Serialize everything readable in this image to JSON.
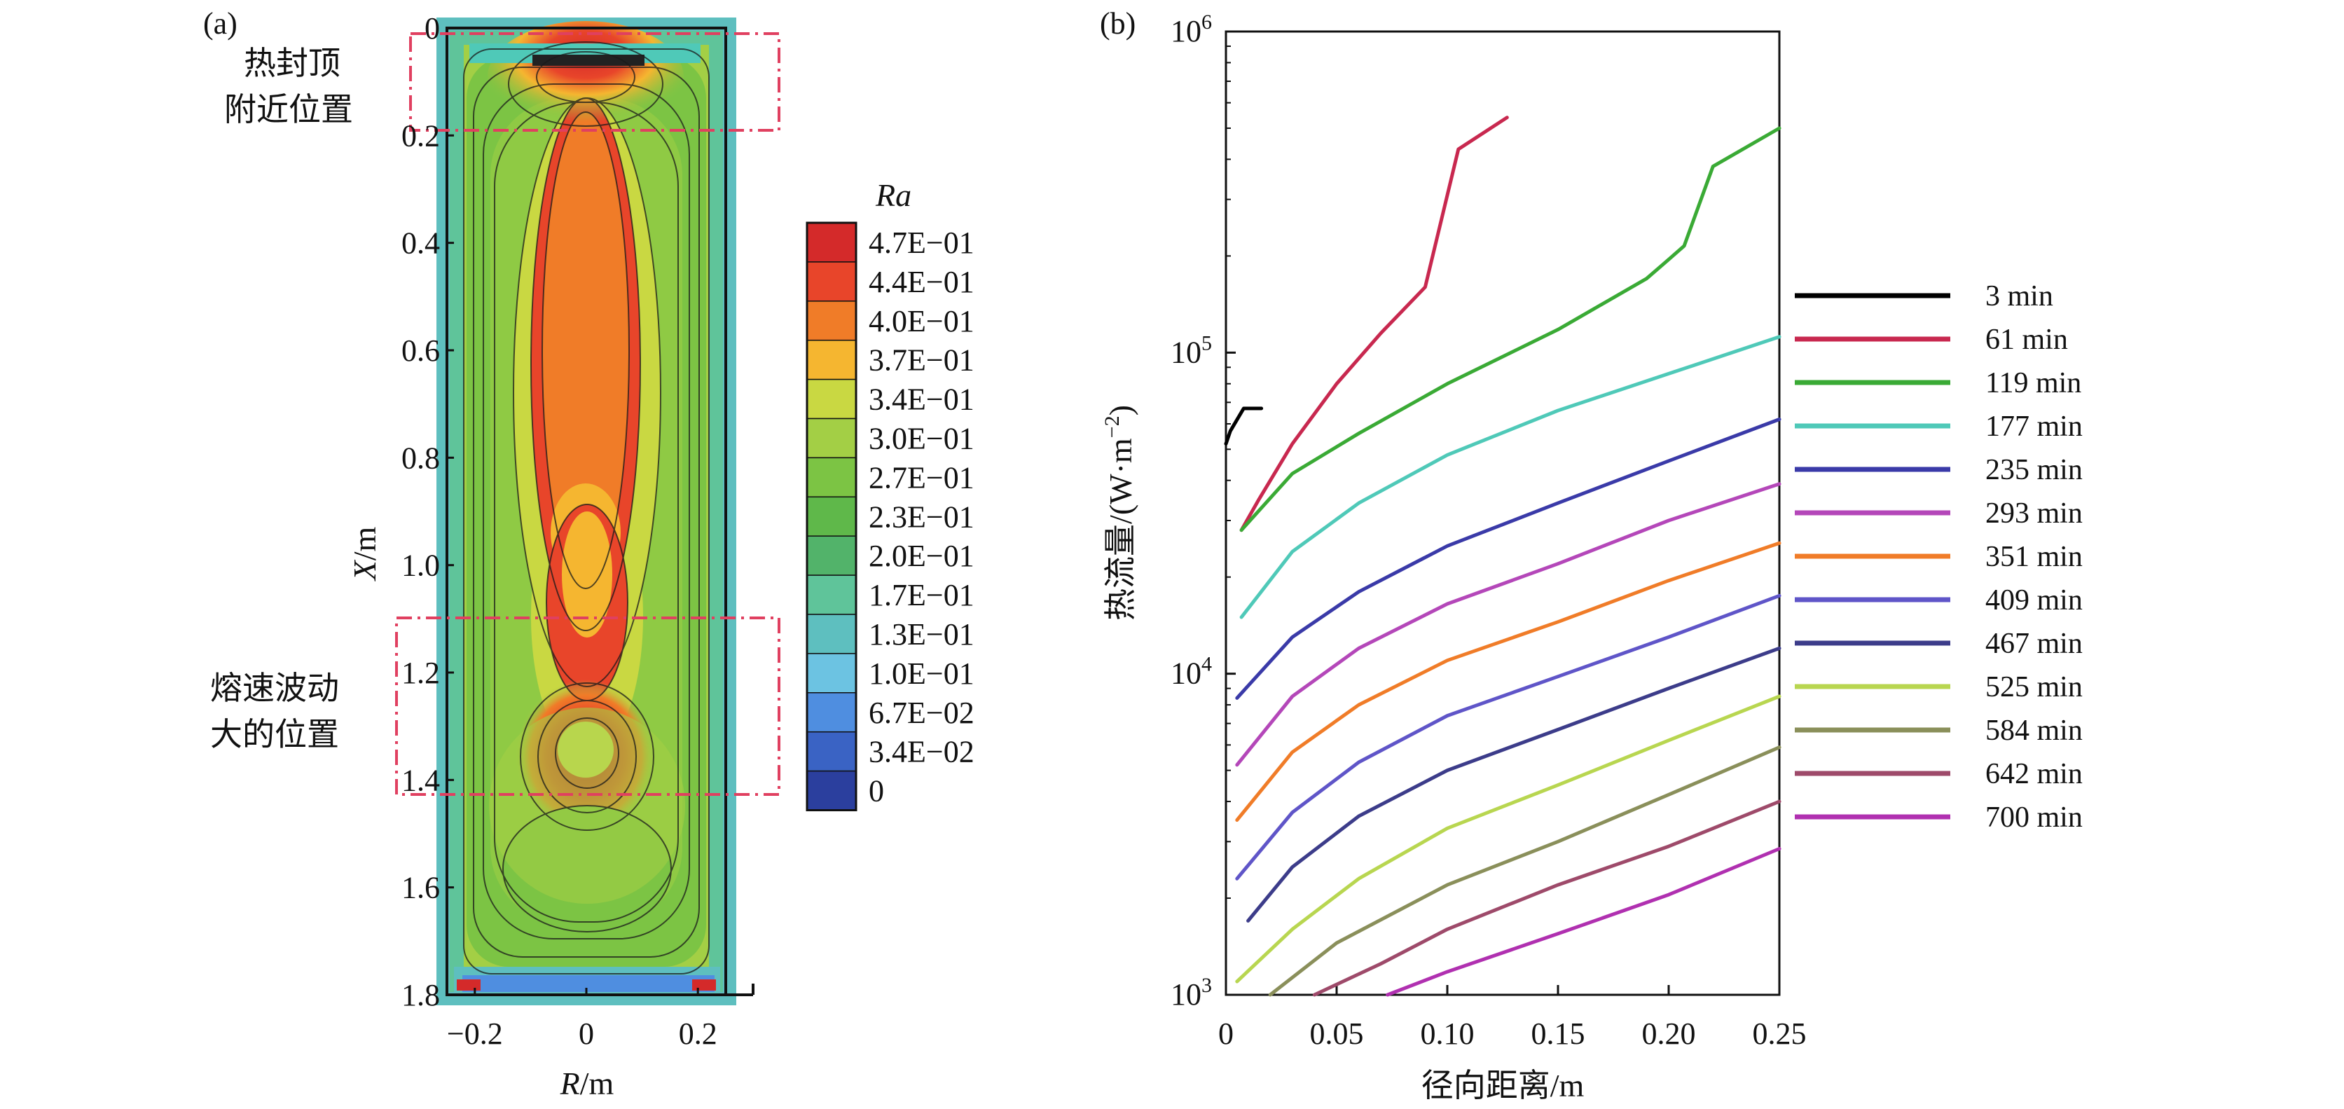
{
  "chart_data": [
    {
      "panel": "(a)",
      "type": "heatmap",
      "xlabel_var": "R",
      "xlabel_unit": "/m",
      "ylabel_var": "X",
      "ylabel_unit": "/m",
      "x_ticks": [
        "−0.2",
        "0",
        "0.2"
      ],
      "x_tick_values": [
        -0.2,
        0,
        0.2
      ],
      "y_ticks": [
        "0",
        "0.2",
        "0.4",
        "0.6",
        "0.8",
        "1.0",
        "1.2",
        "1.4",
        "1.6",
        "1.8"
      ],
      "y_tick_values": [
        0,
        0.2,
        0.4,
        0.6,
        0.8,
        1.0,
        1.2,
        1.4,
        1.6,
        1.8
      ],
      "xlim": [
        -0.25,
        0.25
      ],
      "ylim": [
        1.8,
        0
      ],
      "colorbar_title": "Ra",
      "colorbar_labels": [
        "4.7E−01",
        "4.4E−01",
        "4.0E−01",
        "3.7E−01",
        "3.4E−01",
        "3.0E−01",
        "2.7E−01",
        "2.3E−01",
        "2.0E−01",
        "1.7E−01",
        "1.3E−01",
        "1.0E−01",
        "6.7E−02",
        "3.4E−02",
        "0"
      ],
      "colorbar_colors": [
        "#d42a2a",
        "#e8452a",
        "#f07c28",
        "#f5b630",
        "#c9d842",
        "#a3cf45",
        "#7cc444",
        "#5fb84a",
        "#52b36a",
        "#5fc49a",
        "#5ebfbf",
        "#6cc3e2",
        "#4f8ee0",
        "#3a63c4",
        "#2b3f9e"
      ],
      "annotations": [
        {
          "lines": [
            "热封顶",
            "附近位置"
          ],
          "region_x": [
            0.0,
            0.2
          ]
        },
        {
          "lines": [
            "熔速波动",
            "大的位置"
          ],
          "region_x": [
            1.1,
            1.4
          ]
        }
      ]
    },
    {
      "panel": "(b)",
      "type": "line",
      "xlabel": "径向距离/m",
      "ylabel_main": "热流量/(W·m",
      "ylabel_exp": "−2",
      "ylabel_close": ")",
      "x_ticks": [
        "0",
        "0.05",
        "0.10",
        "0.15",
        "0.20",
        "0.25"
      ],
      "x_tick_values": [
        0,
        0.05,
        0.1,
        0.15,
        0.2,
        0.25
      ],
      "y_ticks": [
        {
          "base": "10",
          "exp": "3"
        },
        {
          "base": "10",
          "exp": "4"
        },
        {
          "base": "10",
          "exp": "5"
        },
        {
          "base": "10",
          "exp": "6"
        }
      ],
      "y_tick_values": [
        1000,
        10000,
        100000,
        1000000
      ],
      "xlim": [
        0,
        0.25
      ],
      "ylim": [
        1000,
        1000000
      ],
      "yscale": "log",
      "legend": "right",
      "series": [
        {
          "name": "3 min",
          "color": "#000000",
          "x": [
            0.0,
            0.002,
            0.008,
            0.016
          ],
          "y": [
            52000,
            57000,
            67000,
            67000
          ]
        },
        {
          "name": "61 min",
          "color": "#c8284f",
          "x": [
            0.007,
            0.015,
            0.03,
            0.05,
            0.07,
            0.09,
            0.105,
            0.127
          ],
          "y": [
            28000,
            35000,
            52000,
            80000,
            115000,
            160000,
            430000,
            540000
          ]
        },
        {
          "name": "119 min",
          "color": "#3aaa35",
          "x": [
            0.007,
            0.03,
            0.06,
            0.1,
            0.15,
            0.19,
            0.2,
            0.207,
            0.22,
            0.25
          ],
          "y": [
            28000,
            42000,
            56000,
            80000,
            118000,
            170000,
            195000,
            215000,
            380000,
            500000
          ]
        },
        {
          "name": "177 min",
          "color": "#4fc9b8",
          "x": [
            0.007,
            0.03,
            0.06,
            0.1,
            0.15,
            0.2,
            0.25
          ],
          "y": [
            15000,
            24000,
            34000,
            48000,
            66000,
            86000,
            112000
          ]
        },
        {
          "name": "235 min",
          "color": "#3a3aa8",
          "x": [
            0.005,
            0.03,
            0.06,
            0.1,
            0.15,
            0.2,
            0.25
          ],
          "y": [
            8400,
            13000,
            18000,
            25000,
            34000,
            46000,
            62000
          ]
        },
        {
          "name": "293 min",
          "color": "#b447b9",
          "x": [
            0.005,
            0.03,
            0.06,
            0.1,
            0.15,
            0.2,
            0.25
          ],
          "y": [
            5200,
            8500,
            12000,
            16500,
            22000,
            30000,
            39000
          ]
        },
        {
          "name": "351 min",
          "color": "#f07c28",
          "x": [
            0.005,
            0.03,
            0.06,
            0.1,
            0.15,
            0.2,
            0.25
          ],
          "y": [
            3500,
            5700,
            8000,
            11000,
            14500,
            19500,
            25500
          ]
        },
        {
          "name": "409 min",
          "color": "#5f55c8",
          "x": [
            0.005,
            0.03,
            0.06,
            0.1,
            0.15,
            0.2,
            0.25
          ],
          "y": [
            2300,
            3700,
            5300,
            7400,
            9800,
            13000,
            17500
          ]
        },
        {
          "name": "467 min",
          "color": "#3c3c8a",
          "x": [
            0.01,
            0.03,
            0.06,
            0.1,
            0.15,
            0.2,
            0.25
          ],
          "y": [
            1700,
            2500,
            3600,
            5000,
            6700,
            9000,
            12000
          ]
        },
        {
          "name": "525 min",
          "color": "#b8d650",
          "x": [
            0.005,
            0.03,
            0.06,
            0.1,
            0.15,
            0.2,
            0.25
          ],
          "y": [
            1100,
            1600,
            2300,
            3300,
            4500,
            6200,
            8500
          ]
        },
        {
          "name": "584 min",
          "color": "#8a8f5a",
          "x": [
            0.02,
            0.05,
            0.1,
            0.15,
            0.2,
            0.25
          ],
          "y": [
            1000,
            1450,
            2200,
            3000,
            4200,
            5900
          ]
        },
        {
          "name": "642 min",
          "color": "#9e4a6a",
          "x": [
            0.04,
            0.07,
            0.1,
            0.15,
            0.2,
            0.25
          ],
          "y": [
            1000,
            1250,
            1600,
            2200,
            2900,
            4000
          ]
        },
        {
          "name": "700 min",
          "color": "#b030b0",
          "x": [
            0.073,
            0.1,
            0.15,
            0.2,
            0.25
          ],
          "y": [
            1000,
            1180,
            1550,
            2050,
            2850
          ]
        }
      ]
    }
  ]
}
